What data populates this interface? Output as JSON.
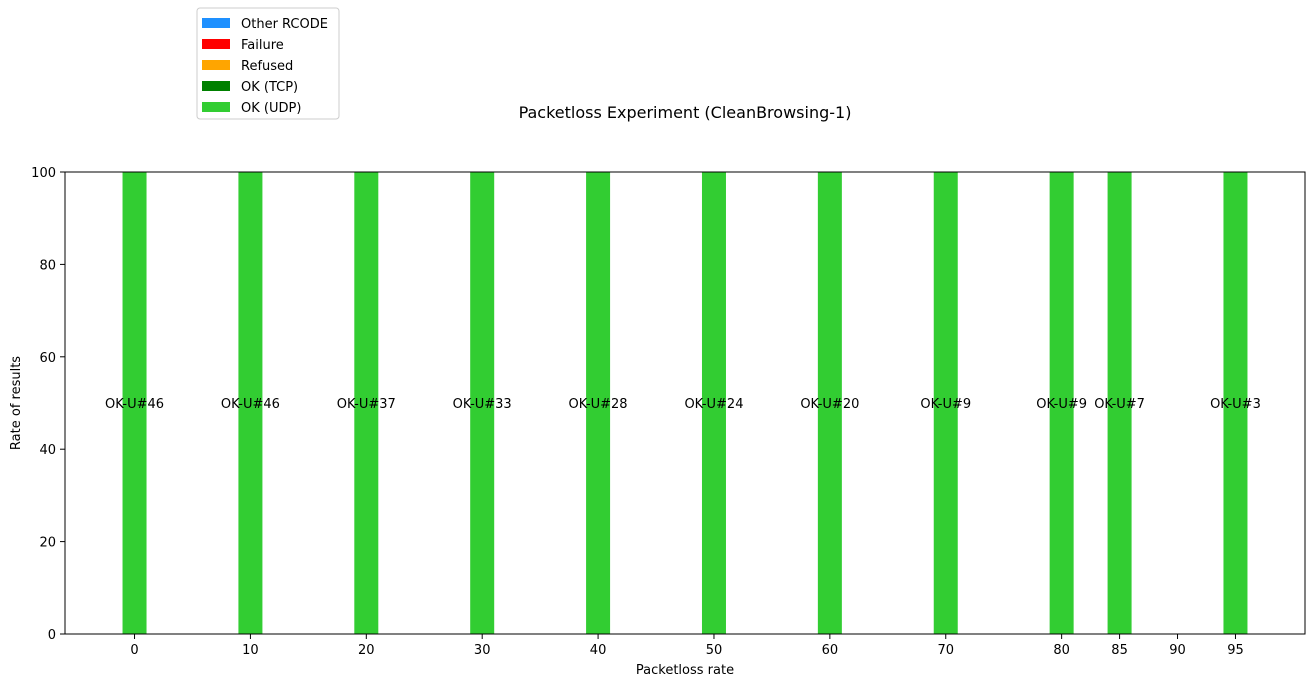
{
  "chart_data": {
    "type": "bar",
    "stacked": true,
    "title": "Packetloss Experiment (CleanBrowsing-1)",
    "xlabel": "Packetloss rate",
    "ylabel": "Rate of results",
    "ylim": [
      0,
      100
    ],
    "yticks": [
      0,
      20,
      40,
      60,
      80,
      100
    ],
    "xlim": [
      -6,
      101
    ],
    "xticks": [
      0,
      10,
      20,
      30,
      40,
      50,
      60,
      70,
      80,
      85,
      90,
      95
    ],
    "legend_position": "top-left",
    "series": [
      {
        "name": "Other RCODE",
        "color": "#1e90ff"
      },
      {
        "name": "Failure",
        "color": "#ff0000"
      },
      {
        "name": "Refused",
        "color": "#ffa500"
      },
      {
        "name": "OK (TCP)",
        "color": "#008000"
      },
      {
        "name": "OK (UDP)",
        "color": "#32cd32"
      }
    ],
    "bars": [
      {
        "x": 0,
        "series": "OK (UDP)",
        "value": 100,
        "label": "OK-U#46"
      },
      {
        "x": 10,
        "series": "OK (UDP)",
        "value": 100,
        "label": "OK-U#46"
      },
      {
        "x": 20,
        "series": "OK (UDP)",
        "value": 100,
        "label": "OK-U#37"
      },
      {
        "x": 30,
        "series": "OK (UDP)",
        "value": 100,
        "label": "OK-U#33"
      },
      {
        "x": 40,
        "series": "OK (UDP)",
        "value": 100,
        "label": "OK-U#28"
      },
      {
        "x": 50,
        "series": "OK (UDP)",
        "value": 100,
        "label": "OK-U#24"
      },
      {
        "x": 60,
        "series": "OK (UDP)",
        "value": 100,
        "label": "OK-U#20"
      },
      {
        "x": 70,
        "series": "OK (UDP)",
        "value": 100,
        "label": "OK-U#9"
      },
      {
        "x": 80,
        "series": "OK (UDP)",
        "value": 100,
        "label": "OK-U#9"
      },
      {
        "x": 85,
        "series": "OK (UDP)",
        "value": 100,
        "label": "OK-U#7"
      },
      {
        "x": 95,
        "series": "OK (UDP)",
        "value": 100,
        "label": "OK-U#3"
      }
    ]
  }
}
